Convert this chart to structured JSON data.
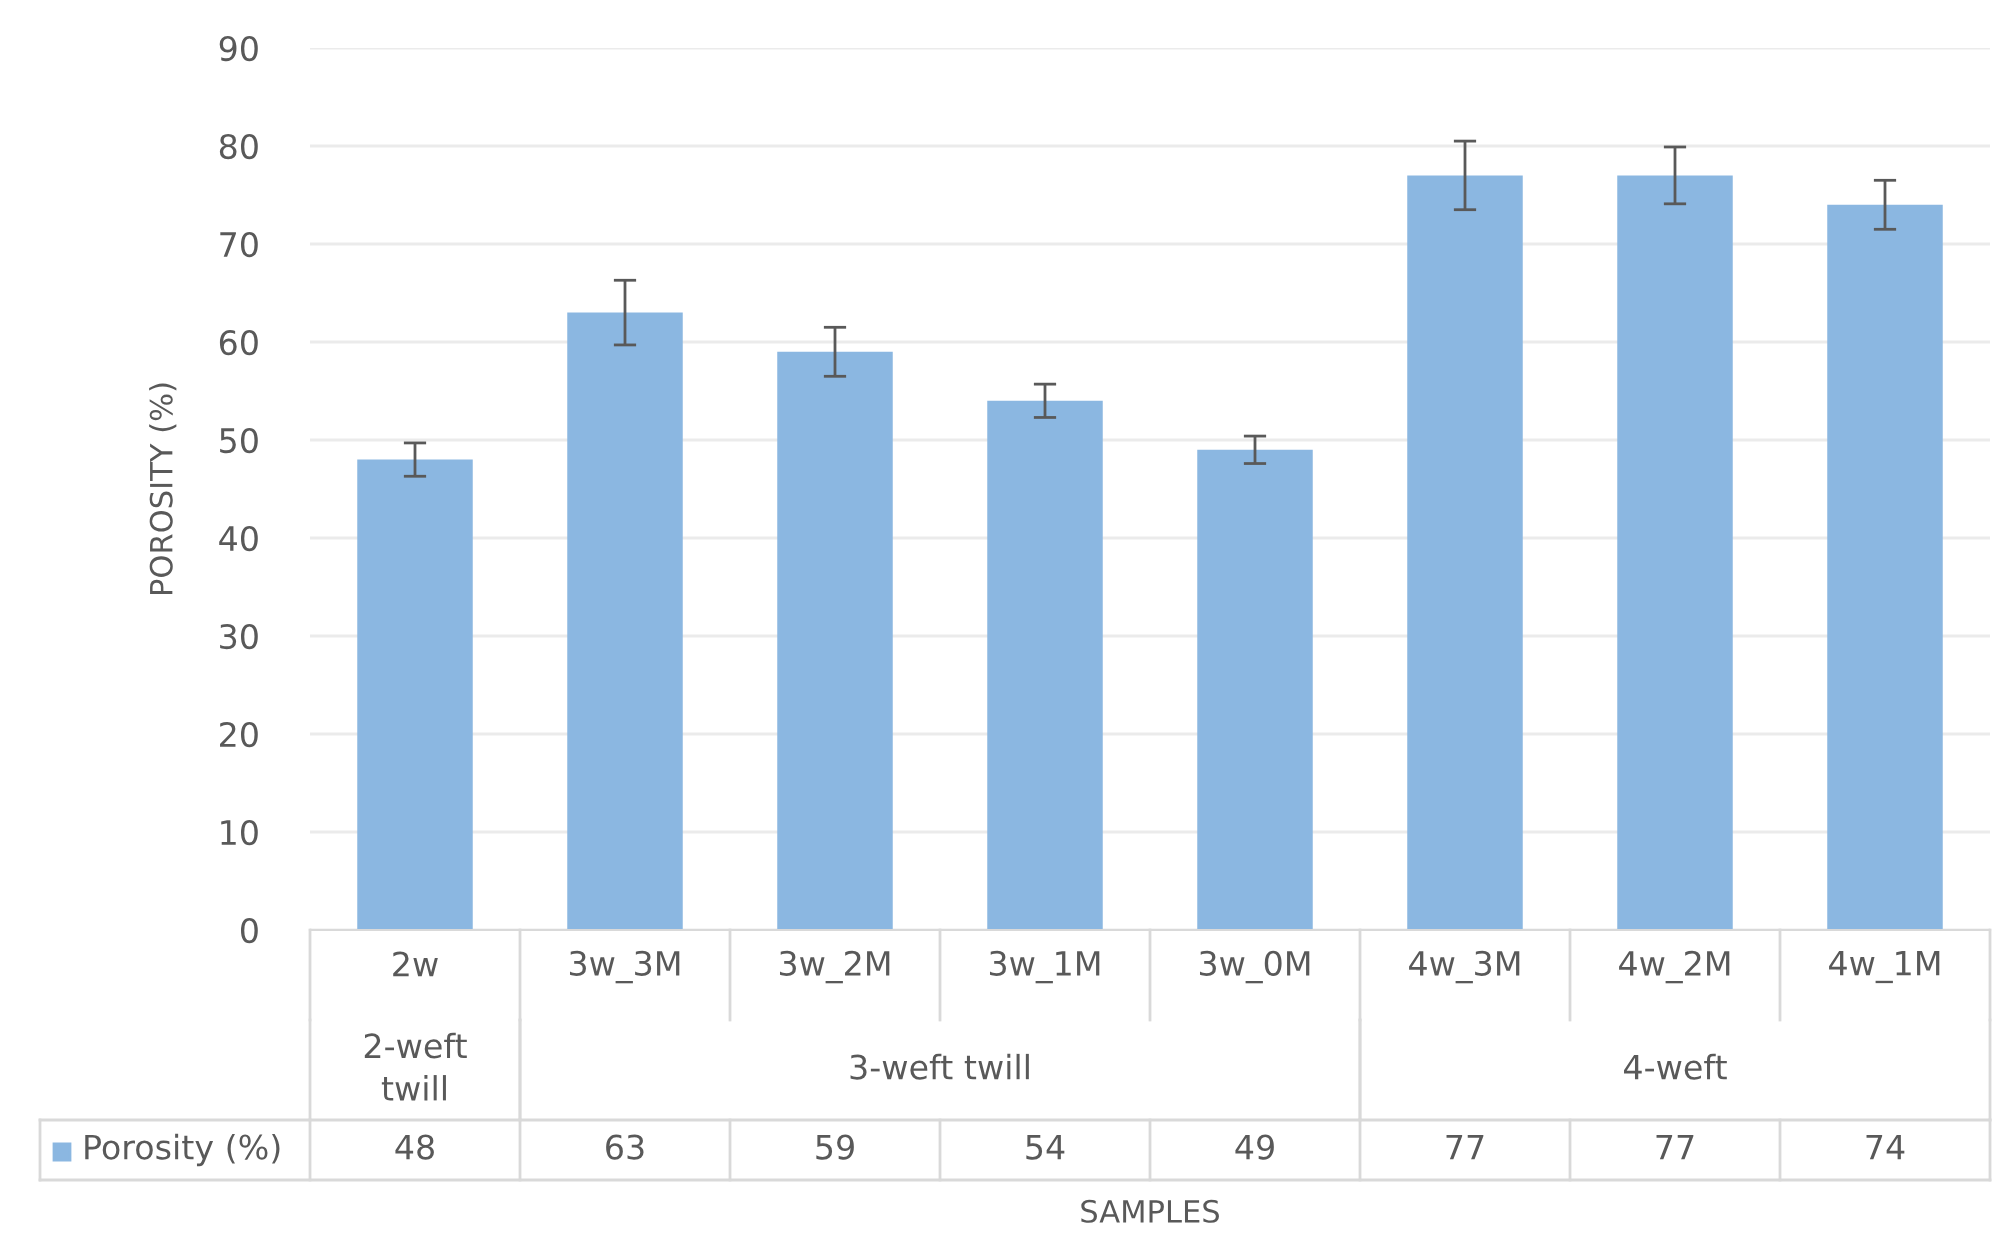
{
  "chart_data": {
    "type": "bar",
    "ylabel": "POROSITY (%)",
    "categories": [
      "2w",
      "3w_3M",
      "3w_2M",
      "3w_1M",
      "3w_0M",
      "4w_3M",
      "4w_2M",
      "4w_1M"
    ],
    "series": [
      {
        "name": "Porosity (%)",
        "color": "#8bb7e1",
        "values": [
          48,
          63,
          59,
          54,
          49,
          77,
          77,
          74
        ],
        "errors": [
          1.7,
          3.3,
          2.5,
          1.7,
          1.4,
          3.5,
          2.9,
          2.5
        ]
      }
    ],
    "annotations": [
      "2-weft twill",
      "3-weft twill",
      "4-weft",
      "SAMPLES"
    ],
    "ylim": [
      0,
      90
    ],
    "yticks": [
      0,
      10,
      20,
      30,
      40,
      50,
      60,
      70,
      80,
      90
    ],
    "grid": "y",
    "legend": "bottom left",
    "data_labels": true
  }
}
